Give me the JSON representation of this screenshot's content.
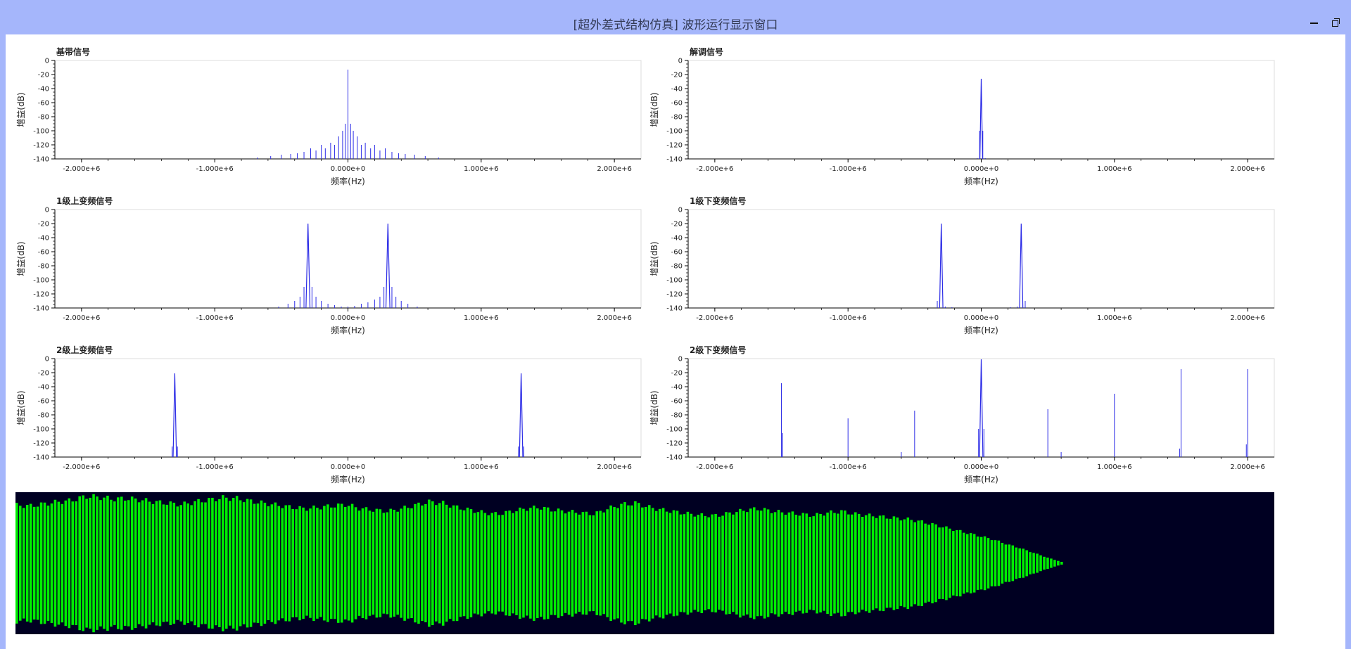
{
  "window": {
    "title": "[超外差式结构仿真] 波形运行显示窗口",
    "minimize_icon": "minimize-icon",
    "restore_icon": "restore-icon"
  },
  "colors": {
    "titlebar": "#a5b6fb",
    "trace": "#2b2be6",
    "wave_bg": "#000022",
    "wave_fg": "#00ee00"
  },
  "chart_data": [
    {
      "id": "baseband",
      "type": "line",
      "title": "基带信号",
      "xlabel": "频率(Hz)",
      "ylabel": "增益(dB)",
      "xlim": [
        -2200000,
        2200000
      ],
      "ylim": [
        -140,
        0
      ],
      "xticks": [
        -2000000,
        -1000000,
        0,
        1000000,
        2000000
      ],
      "xtick_labels": [
        "-2.000e+6",
        "-1.000e+6",
        "0.000e+0",
        "1.000e+6",
        "2.000e+6"
      ],
      "yticks": [
        0,
        -20,
        -40,
        -60,
        -80,
        -100,
        -120,
        -140
      ],
      "spectral_lines": [
        {
          "x": 0,
          "y": -13
        },
        {
          "x": -20000,
          "y": -90
        },
        {
          "x": 20000,
          "y": -90
        },
        {
          "x": -40000,
          "y": -100
        },
        {
          "x": 40000,
          "y": -100
        },
        {
          "x": -70000,
          "y": -108
        },
        {
          "x": 70000,
          "y": -108
        },
        {
          "x": -100000,
          "y": -120
        },
        {
          "x": 100000,
          "y": -120
        },
        {
          "x": -130000,
          "y": -117
        },
        {
          "x": 130000,
          "y": -117
        },
        {
          "x": -170000,
          "y": -125
        },
        {
          "x": 170000,
          "y": -125
        },
        {
          "x": -200000,
          "y": -120
        },
        {
          "x": 200000,
          "y": -120
        },
        {
          "x": -240000,
          "y": -128
        },
        {
          "x": 240000,
          "y": -128
        },
        {
          "x": -280000,
          "y": -125
        },
        {
          "x": 280000,
          "y": -125
        },
        {
          "x": -330000,
          "y": -130
        },
        {
          "x": 330000,
          "y": -130
        },
        {
          "x": -380000,
          "y": -132
        },
        {
          "x": 380000,
          "y": -132
        },
        {
          "x": -430000,
          "y": -133
        },
        {
          "x": 430000,
          "y": -133
        },
        {
          "x": -500000,
          "y": -134
        },
        {
          "x": 500000,
          "y": -134
        },
        {
          "x": -580000,
          "y": -136
        },
        {
          "x": 580000,
          "y": -136
        },
        {
          "x": -680000,
          "y": -138
        },
        {
          "x": 680000,
          "y": -138
        }
      ]
    },
    {
      "id": "demodulated",
      "type": "line",
      "title": "解调信号",
      "xlabel": "频率(Hz)",
      "ylabel": "增益(dB)",
      "xlim": [
        -2200000,
        2200000
      ],
      "ylim": [
        -140,
        0
      ],
      "xticks": [
        -2000000,
        -1000000,
        0,
        1000000,
        2000000
      ],
      "xtick_labels": [
        "-2.000e+6",
        "-1.000e+6",
        "0.000e+0",
        "1.000e+6",
        "2.000e+6"
      ],
      "yticks": [
        0,
        -20,
        -40,
        -60,
        -80,
        -100,
        -120,
        -140
      ],
      "peaks": [
        {
          "x": 0,
          "y": -26,
          "width": 20000
        }
      ],
      "spectral_lines": [
        {
          "x": -12000,
          "y": -100
        },
        {
          "x": 12000,
          "y": -100
        },
        {
          "x": -30000,
          "y": -139
        },
        {
          "x": 30000,
          "y": -139
        }
      ]
    },
    {
      "id": "up1",
      "type": "line",
      "title": "1级上变频信号",
      "xlabel": "频率(Hz)",
      "ylabel": "增益(dB)",
      "xlim": [
        -2200000,
        2200000
      ],
      "ylim": [
        -140,
        0
      ],
      "xticks": [
        -2000000,
        -1000000,
        0,
        1000000,
        2000000
      ],
      "xtick_labels": [
        "-2.000e+6",
        "-1.000e+6",
        "0.000e+0",
        "1.000e+6",
        "2.000e+6"
      ],
      "yticks": [
        0,
        -20,
        -40,
        -60,
        -80,
        -100,
        -120,
        -140
      ],
      "peaks": [
        {
          "x": -300000,
          "y": -20,
          "width": 30000
        },
        {
          "x": 300000,
          "y": -20,
          "width": 30000
        }
      ],
      "spectral_lines": [
        {
          "x": -330000,
          "y": -110
        },
        {
          "x": -270000,
          "y": -110
        },
        {
          "x": 270000,
          "y": -110
        },
        {
          "x": 330000,
          "y": -110
        },
        {
          "x": -360000,
          "y": -124
        },
        {
          "x": -240000,
          "y": -124
        },
        {
          "x": 240000,
          "y": -124
        },
        {
          "x": 360000,
          "y": -124
        },
        {
          "x": -400000,
          "y": -130
        },
        {
          "x": -200000,
          "y": -130
        },
        {
          "x": 200000,
          "y": -128
        },
        {
          "x": 400000,
          "y": -130
        },
        {
          "x": -450000,
          "y": -134
        },
        {
          "x": -150000,
          "y": -134
        },
        {
          "x": 150000,
          "y": -132
        },
        {
          "x": 450000,
          "y": -134
        },
        {
          "x": -100000,
          "y": -136
        },
        {
          "x": 100000,
          "y": -134
        },
        {
          "x": -50000,
          "y": -138
        },
        {
          "x": 0,
          "y": -138
        },
        {
          "x": 50000,
          "y": -137
        },
        {
          "x": 520000,
          "y": -138
        },
        {
          "x": -520000,
          "y": -138
        }
      ]
    },
    {
      "id": "down1",
      "type": "line",
      "title": "1级下变频信号",
      "xlabel": "频率(Hz)",
      "ylabel": "增益(dB)",
      "xlim": [
        -2200000,
        2200000
      ],
      "ylim": [
        -140,
        0
      ],
      "xticks": [
        -2000000,
        -1000000,
        0,
        1000000,
        2000000
      ],
      "xtick_labels": [
        "-2.000e+6",
        "-1.000e+6",
        "0.000e+0",
        "1.000e+6",
        "2.000e+6"
      ],
      "yticks": [
        0,
        -20,
        -40,
        -60,
        -80,
        -100,
        -120,
        -140
      ],
      "peaks": [
        {
          "x": -300000,
          "y": -20,
          "width": 25000
        },
        {
          "x": 300000,
          "y": -20,
          "width": 25000
        }
      ],
      "spectral_lines": [
        {
          "x": -330000,
          "y": -130
        },
        {
          "x": 330000,
          "y": -130
        },
        {
          "x": -270000,
          "y": -138
        },
        {
          "x": 270000,
          "y": -138
        },
        {
          "x": -220000,
          "y": -139
        },
        {
          "x": 220000,
          "y": -139
        }
      ]
    },
    {
      "id": "up2",
      "type": "line",
      "title": "2级上变频信号",
      "xlabel": "频率(Hz)",
      "ylabel": "增益(dB)",
      "xlim": [
        -2200000,
        2200000
      ],
      "ylim": [
        -140,
        0
      ],
      "xticks": [
        -2000000,
        -1000000,
        0,
        1000000,
        2000000
      ],
      "xtick_labels": [
        "-2.000e+6",
        "-1.000e+6",
        "0.000e+0",
        "1.000e+6",
        "2.000e+6"
      ],
      "yticks": [
        0,
        -20,
        -40,
        -60,
        -80,
        -100,
        -120,
        -140
      ],
      "peaks": [
        {
          "x": -1300000,
          "y": -21,
          "width": 25000
        },
        {
          "x": 1300000,
          "y": -21,
          "width": 25000
        }
      ],
      "spectral_lines": [
        {
          "x": -1320000,
          "y": -125
        },
        {
          "x": -1280000,
          "y": -125
        },
        {
          "x": 1280000,
          "y": -125
        },
        {
          "x": 1320000,
          "y": -125
        }
      ]
    },
    {
      "id": "down2",
      "type": "line",
      "title": "2级下变频信号",
      "xlabel": "频率(Hz)",
      "ylabel": "增益(dB)",
      "xlim": [
        -2200000,
        2200000
      ],
      "ylim": [
        -140,
        0
      ],
      "xticks": [
        -2000000,
        -1000000,
        0,
        1000000,
        2000000
      ],
      "xtick_labels": [
        "-2.000e+6",
        "-1.000e+6",
        "0.000e+0",
        "1.000e+6",
        "2.000e+6"
      ],
      "yticks": [
        0,
        -20,
        -40,
        -60,
        -80,
        -100,
        -120,
        -140
      ],
      "peaks": [
        {
          "x": 0,
          "y": -1,
          "width": 25000
        }
      ],
      "spectral_lines": [
        {
          "x": -20000,
          "y": -100
        },
        {
          "x": 20000,
          "y": -100
        },
        {
          "x": -1500000,
          "y": -35
        },
        {
          "x": -1490000,
          "y": -106
        },
        {
          "x": -1000000,
          "y": -85
        },
        {
          "x": -500000,
          "y": -74
        },
        {
          "x": -600000,
          "y": -133
        },
        {
          "x": 500000,
          "y": -72
        },
        {
          "x": 600000,
          "y": -133
        },
        {
          "x": 1000000,
          "y": -50
        },
        {
          "x": 1500000,
          "y": -15
        },
        {
          "x": 1490000,
          "y": -128
        },
        {
          "x": 2000000,
          "y": -15
        },
        {
          "x": 1990000,
          "y": -122
        }
      ]
    }
  ],
  "waveform": {
    "type": "area",
    "bar_count": 300,
    "envelope": [
      0.85,
      0.84,
      0.87,
      0.9,
      0.92,
      0.98,
      0.97,
      0.94,
      0.95,
      0.93,
      0.9,
      0.88,
      0.86,
      0.9,
      0.93,
      0.96,
      0.95,
      0.91,
      0.88,
      0.85,
      0.82,
      0.8,
      0.82,
      0.84,
      0.86,
      0.8,
      0.78,
      0.76,
      0.8,
      0.85,
      0.9,
      0.88,
      0.82,
      0.78,
      0.74,
      0.72,
      0.76,
      0.8,
      0.82,
      0.78,
      0.76,
      0.74,
      0.72,
      0.8,
      0.86,
      0.88,
      0.82,
      0.78,
      0.75,
      0.72,
      0.7,
      0.7,
      0.74,
      0.78,
      0.8,
      0.76,
      0.74,
      0.72,
      0.7,
      0.74,
      0.76,
      0.72,
      0.7,
      0.68,
      0.66,
      0.64,
      0.6,
      0.55,
      0.5,
      0.45,
      0.4,
      0.35,
      0.28,
      0.22,
      0.15,
      0.08,
      0.02
    ],
    "min_amplitude": 0.015
  }
}
